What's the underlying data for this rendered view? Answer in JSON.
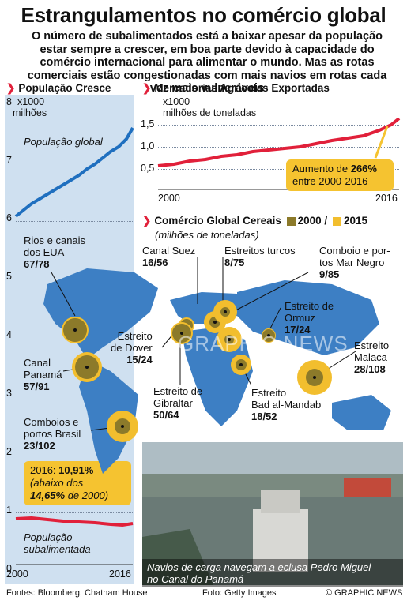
{
  "title": "Estrangulamentos no comércio global",
  "subtitle": "O número de subalimentados está a baixar apesar da população estar sempre a crescer, em boa parte devido à capacidade do comércio internacional para alimentar o mundo. Mas as rotas comerciais estão congestionadas com mais navios em rotas cada vez mais vulneráveis",
  "population": {
    "heading": "População Cresce",
    "unit_line1": "x1000",
    "unit_line2": "milhões",
    "label_global": "População global",
    "label_under_1": "População",
    "label_under_2": "subalimentada",
    "y_ticks": [
      "8",
      "7",
      "6",
      "5",
      "4",
      "3",
      "2",
      "1",
      "0"
    ],
    "x_start": "2000",
    "x_end": "2016",
    "callout_prefix": "2016: ",
    "callout_value": "10,91%",
    "callout_line2": "(abaixo dos",
    "callout_value2": "14,65%",
    "callout_suffix": " de 2000)"
  },
  "agri": {
    "heading": "Mercadorias Agrícolas Exportadas",
    "unit_line1": "x1000",
    "unit_line2": "milhões de toneladas",
    "y_ticks": [
      "1,5",
      "1,0",
      "0,5"
    ],
    "x_start": "2000",
    "x_end": "2016",
    "callout_prefix": "Aumento de ",
    "callout_value": "266%",
    "callout_line2": "entre 2000-2016"
  },
  "cereal": {
    "heading": "Comércio Global Cereais",
    "sub": "(milhões de toneladas)",
    "legend_2000": "2000 /",
    "legend_2015": "2015",
    "color_2000": "#8c7a2a",
    "color_2015": "#f2be2e"
  },
  "chokepoints": [
    {
      "l1": "Rios e canais",
      "l2": "dos EUA",
      "val": "67/78"
    },
    {
      "l1": "Canal Suez",
      "l2": "",
      "val": "16/56"
    },
    {
      "l1": "Estreitos turcos",
      "l2": "",
      "val": "8/75"
    },
    {
      "l1": "Comboio e por-",
      "l2": "tos Mar Negro",
      "val": "9/85"
    },
    {
      "l1": "Estreito de",
      "l2": "Ormuz",
      "val": "17/24"
    },
    {
      "l1": "Estreito",
      "l2": "de Dover",
      "val": "15/24"
    },
    {
      "l1": "Estreito",
      "l2": "Malaca",
      "val": "28/108"
    },
    {
      "l1": "Canal",
      "l2": "Panamá",
      "val": "57/91"
    },
    {
      "l1": "Estreito de",
      "l2": "Gibraltar",
      "val": "50/64"
    },
    {
      "l1": "Estreito",
      "l2": "Bad al-Mandab",
      "val": "18/52"
    },
    {
      "l1": "Comboios e",
      "l2": "portos Brasil",
      "val": "23/102"
    }
  ],
  "watermark": "GRAPHIC NEWS",
  "photo_caption_1": "Navios de carga navegam a eclusa  Pedro Miguel",
  "photo_caption_2": "no Canal do Panamá",
  "footer_sources": "Fontes: Bloomberg, Chatham House",
  "footer_photo": "Foto: Getty Images",
  "footer_credit": "© GRAPHIC NEWS",
  "colors": {
    "accent_red": "#e1203a",
    "blue_line": "#1f6fbf",
    "map_blue": "#3d7fc4",
    "ocean": "#cfe0f0"
  }
}
